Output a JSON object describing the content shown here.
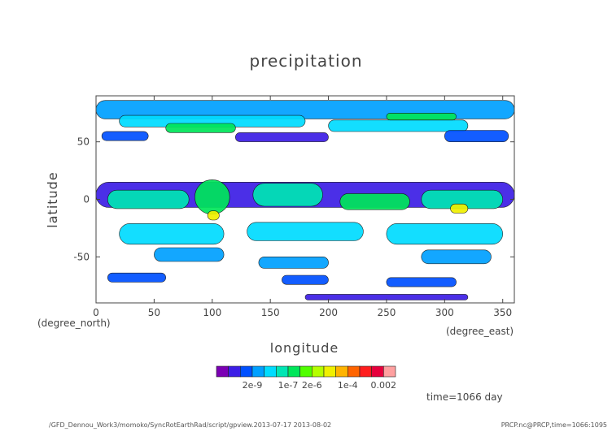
{
  "chart_data": {
    "type": "heatmap",
    "title": "precipitation",
    "xlabel": "longitude",
    "ylabel": "latitude",
    "x_unit": "(degree_east)",
    "y_unit": "(degree_north)",
    "xlim": [
      0,
      360
    ],
    "ylim": [
      -90,
      90
    ],
    "x_ticks": [
      "0",
      "50",
      "100",
      "150",
      "200",
      "250",
      "300",
      "350"
    ],
    "y_ticks": [
      "50",
      "0",
      "-50"
    ],
    "colorbar": {
      "colors": [
        "#7b00b4",
        "#3c1ee6",
        "#0050ff",
        "#00a0ff",
        "#00dcff",
        "#00e6b4",
        "#00e65a",
        "#50ff00",
        "#b4ff00",
        "#f0f000",
        "#ffb400",
        "#ff6400",
        "#ff1e1e",
        "#e6003c",
        "#ffa0a0"
      ],
      "labels": [
        "2e-9",
        "1e-7",
        "2e-6",
        "1e-4",
        "0.002"
      ]
    },
    "time_label": "time=1066 day",
    "regions": [
      {
        "lon": 0,
        "lat": 78,
        "w": 360,
        "h": 16,
        "level": 3
      },
      {
        "lon": 20,
        "lat": 68,
        "w": 160,
        "h": 10,
        "level": 4
      },
      {
        "lon": 200,
        "lat": 64,
        "w": 120,
        "h": 10,
        "level": 4
      },
      {
        "lon": 60,
        "lat": 62,
        "w": 60,
        "h": 8,
        "level": 6
      },
      {
        "lon": 250,
        "lat": 72,
        "w": 60,
        "h": 6,
        "level": 6
      },
      {
        "lon": 5,
        "lat": 55,
        "w": 40,
        "h": 8,
        "level": 2
      },
      {
        "lon": 120,
        "lat": 54,
        "w": 80,
        "h": 8,
        "level": 1
      },
      {
        "lon": 300,
        "lat": 55,
        "w": 55,
        "h": 10,
        "level": 2
      },
      {
        "lon": 0,
        "lat": 4,
        "w": 360,
        "h": 22,
        "level": 1
      },
      {
        "lon": 10,
        "lat": 0,
        "w": 70,
        "h": 16,
        "level": 5
      },
      {
        "lon": 85,
        "lat": 2,
        "w": 30,
        "h": 30,
        "level": 6
      },
      {
        "lon": 96,
        "lat": -14,
        "w": 10,
        "h": 8,
        "level": 9
      },
      {
        "lon": 135,
        "lat": 4,
        "w": 60,
        "h": 20,
        "level": 5
      },
      {
        "lon": 210,
        "lat": -2,
        "w": 60,
        "h": 14,
        "level": 6
      },
      {
        "lon": 280,
        "lat": 0,
        "w": 70,
        "h": 16,
        "level": 5
      },
      {
        "lon": 305,
        "lat": -8,
        "w": 15,
        "h": 8,
        "level": 9
      },
      {
        "lon": 20,
        "lat": -30,
        "w": 90,
        "h": 18,
        "level": 4
      },
      {
        "lon": 130,
        "lat": -28,
        "w": 100,
        "h": 16,
        "level": 4
      },
      {
        "lon": 250,
        "lat": -30,
        "w": 100,
        "h": 18,
        "level": 4
      },
      {
        "lon": 50,
        "lat": -48,
        "w": 60,
        "h": 12,
        "level": 3
      },
      {
        "lon": 140,
        "lat": -55,
        "w": 60,
        "h": 10,
        "level": 3
      },
      {
        "lon": 280,
        "lat": -50,
        "w": 60,
        "h": 12,
        "level": 3
      },
      {
        "lon": 10,
        "lat": -68,
        "w": 50,
        "h": 8,
        "level": 2
      },
      {
        "lon": 160,
        "lat": -70,
        "w": 40,
        "h": 8,
        "level": 2
      },
      {
        "lon": 250,
        "lat": -72,
        "w": 60,
        "h": 8,
        "level": 2
      },
      {
        "lon": 180,
        "lat": -85,
        "w": 140,
        "h": 5,
        "level": 1
      }
    ]
  },
  "footer": {
    "path": "/GFD_Dennou_Work3/momoko/SyncRotEarthRad/script/gpview.2013-07-17  2013-08-02",
    "source": "PRCP.nc@PRCP,time=1066:1095"
  }
}
